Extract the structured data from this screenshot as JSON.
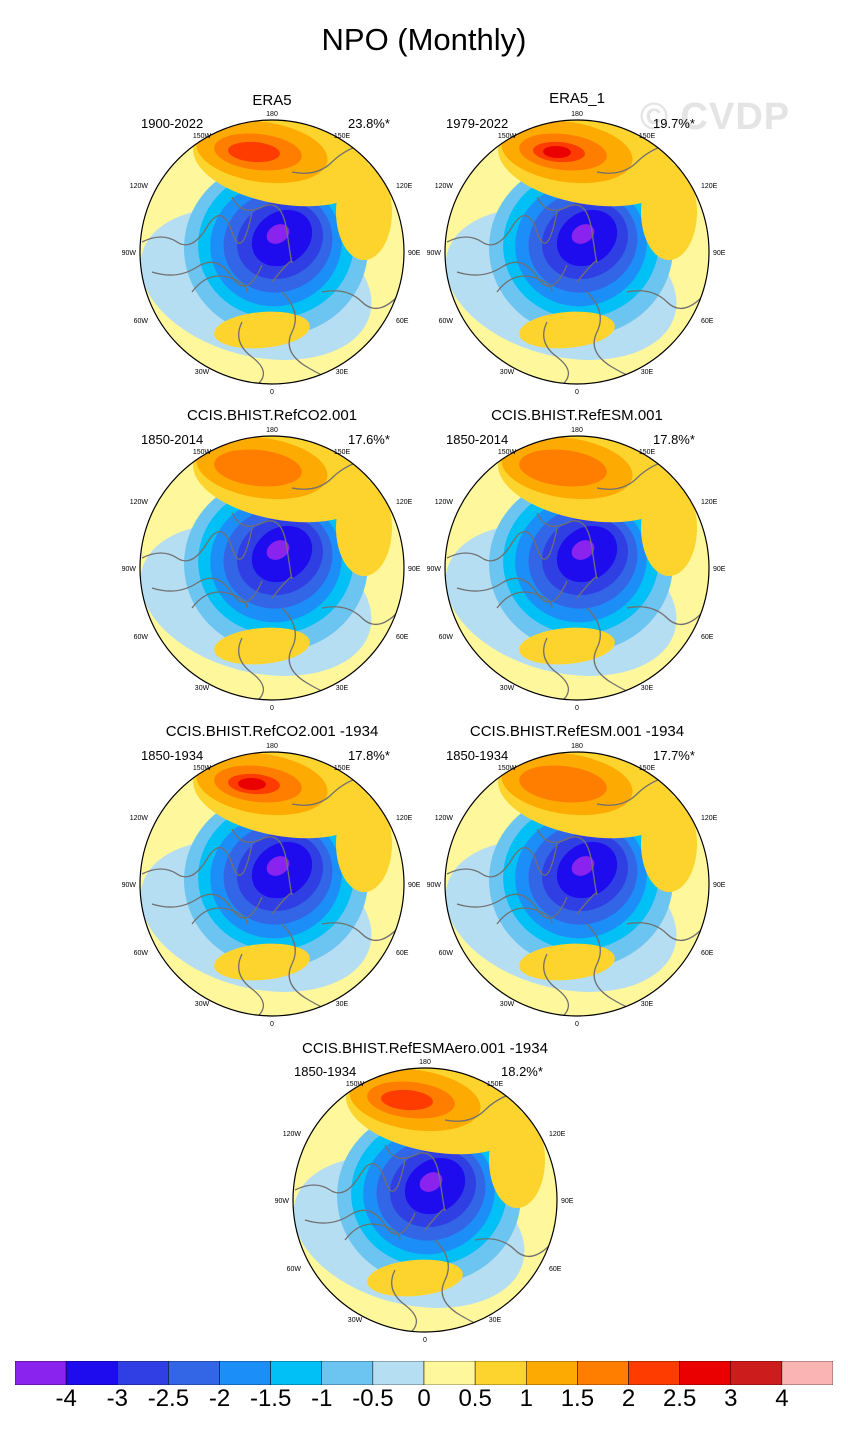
{
  "title": "NPO (Monthly)",
  "watermark": "© CVDP",
  "colors": {
    "ocean": "#fff79b",
    "coast": "#707070",
    "levels": [
      "#8a23ee",
      "#1e0cee",
      "#2f3fe4",
      "#3366e6",
      "#1c8ef7",
      "#00c0f5",
      "#6cc4f0",
      "#b6def2",
      "#fff79b",
      "#fdd42d",
      "#fdaa02",
      "#ff7e00",
      "#fe3c00",
      "#eb0000",
      "#cc1c1c",
      "#fab4b4"
    ]
  },
  "chart_data": {
    "type": "polar-contour-map",
    "colorbar": {
      "tick_labels": [
        "-4",
        "-3",
        "-2.5",
        "-2",
        "-1.5",
        "-1",
        "-0.5",
        "0",
        "0.5",
        "1",
        "1.5",
        "2",
        "2.5",
        "3",
        "4"
      ]
    },
    "map_labels": {
      "top": "180",
      "bottom": "0",
      "left_upper": "120W",
      "left_mid": "90W",
      "left_lower": "60W",
      "right_upper": "120E",
      "right_mid": "90E",
      "right_lower": "60E",
      "top_left": "150W",
      "top_right": "150E",
      "bottom_left": "30W",
      "bottom_right": "30E"
    },
    "panels": [
      {
        "title": "ERA5",
        "years": "1900-2022",
        "pct": "23.8%*",
        "max_level": 2,
        "min_level": -4
      },
      {
        "title": "ERA5_1",
        "years": "1979-2022",
        "pct": "19.7%*",
        "max_level": 2.5,
        "min_level": -4
      },
      {
        "title": "CCIS.BHIST.RefCO2.001",
        "years": "1850-2014",
        "pct": "17.6%*",
        "max_level": 1.5,
        "min_level": -4
      },
      {
        "title": "CCIS.BHIST.RefESM.001",
        "years": "1850-2014",
        "pct": "17.8%*",
        "max_level": 1.5,
        "min_level": -4
      },
      {
        "title": "CCIS.BHIST.RefCO2.001 -1934",
        "years": "1850-1934",
        "pct": "17.8%*",
        "max_level": 2.5,
        "min_level": -4
      },
      {
        "title": "CCIS.BHIST.RefESM.001 -1934",
        "years": "1850-1934",
        "pct": "17.7%*",
        "max_level": 1.5,
        "min_level": -4
      },
      {
        "title": "CCIS.BHIST.RefESMAero.001 -1934",
        "years": "1850-1934",
        "pct": "18.2%*",
        "max_level": 2,
        "min_level": -4
      }
    ]
  }
}
